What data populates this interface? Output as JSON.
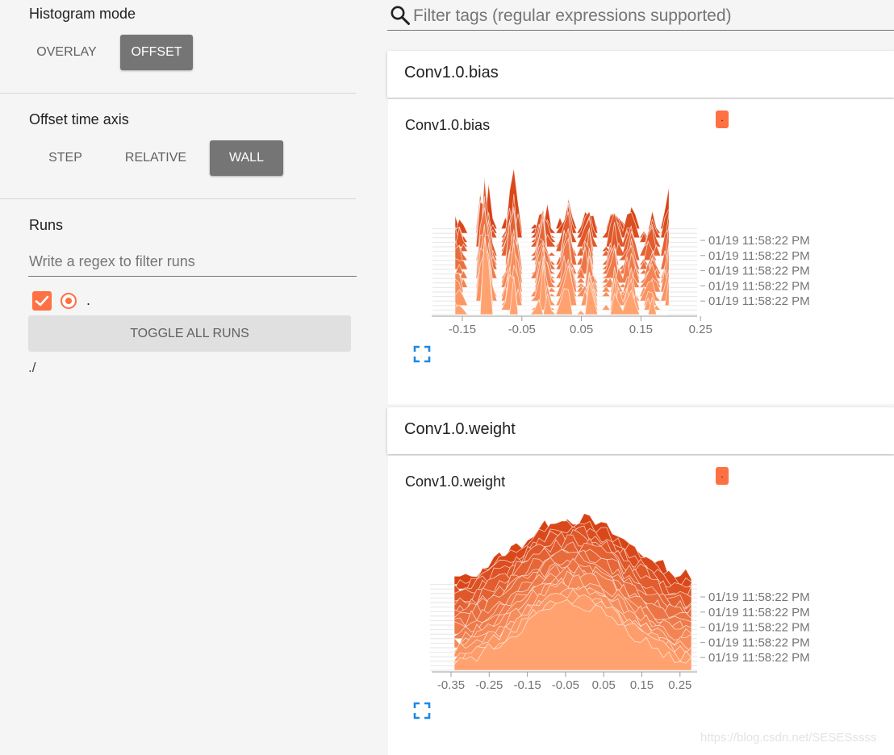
{
  "sidebar": {
    "histogram_mode": {
      "title": "Histogram mode",
      "options": [
        "OVERLAY",
        "OFFSET"
      ],
      "selected": "OFFSET"
    },
    "offset_time_axis": {
      "title": "Offset time axis",
      "options": [
        "STEP",
        "RELATIVE",
        "WALL"
      ],
      "selected": "WALL"
    },
    "runs": {
      "title": "Runs",
      "filter_placeholder": "Write a regex to filter runs",
      "items": [
        {
          "name": ".",
          "checked": true,
          "color": "#ff7043"
        }
      ],
      "toggle_all_label": "TOGGLE ALL RUNS",
      "log_dir": "./"
    }
  },
  "main": {
    "filter_placeholder": "Filter tags (regular expressions supported)",
    "watermark": "https://blog.csdn.net/SESESssss",
    "categories": [
      {
        "header": "Conv1.0.bias",
        "card": {
          "title": "Conv1.0.bias",
          "run_badge": ".",
          "time_labels": [
            "01/19 11:58:22 PM",
            "01/19 11:58:22 PM",
            "01/19 11:58:22 PM",
            "01/19 11:58:22 PM",
            "01/19 11:58:22 PM"
          ],
          "x_ticks": [
            "-0.15",
            "-0.05",
            "0.05",
            "0.15",
            "0.25"
          ]
        }
      },
      {
        "header": "Conv1.0.weight",
        "card": {
          "title": "Conv1.0.weight",
          "run_badge": ".",
          "time_labels": [
            "01/19 11:58:22 PM",
            "01/19 11:58:22 PM",
            "01/19 11:58:22 PM",
            "01/19 11:58:22 PM",
            "01/19 11:58:22 PM"
          ],
          "x_ticks": [
            "-0.35",
            "-0.25",
            "-0.15",
            "-0.05",
            "0.05",
            "0.15",
            "0.25"
          ]
        }
      }
    ]
  },
  "colors": {
    "accent": "#ff7043",
    "selected_button": "#757575"
  }
}
